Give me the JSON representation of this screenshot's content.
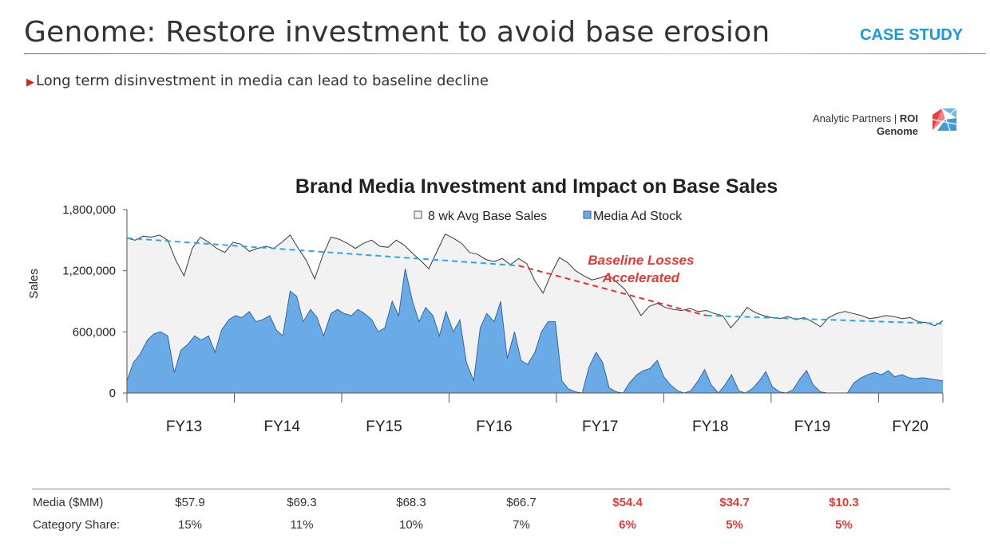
{
  "header": {
    "title": "Genome: Restore investment to avoid base erosion",
    "tag": "CASE STUDY",
    "subtitle": "Long term disinvestment in media can lead to baseline decline",
    "brand_line1": "Analytic Partners | ",
    "brand_bold1": "ROI",
    "brand_bold2": "Genome"
  },
  "chart_data": {
    "type": "area",
    "title": "Brand Media Investment and Impact on Base Sales",
    "ylabel": "Sales",
    "ylim": [
      0,
      1800000
    ],
    "yticks": [
      0,
      600000,
      1200000,
      1800000
    ],
    "ytick_labels": [
      "0",
      "600,000",
      "1,200,000",
      "1,800,000"
    ],
    "x_domain": [
      0,
      100
    ],
    "fiscal_years": [
      {
        "label": "FY13",
        "x": 7
      },
      {
        "label": "FY14",
        "x": 19
      },
      {
        "label": "FY15",
        "x": 31.5
      },
      {
        "label": "FY16",
        "x": 45
      },
      {
        "label": "FY17",
        "x": 58
      },
      {
        "label": "FY18",
        "x": 71.5
      },
      {
        "label": "FY19",
        "x": 84
      },
      {
        "label": "FY20",
        "x": 96
      }
    ],
    "legend": [
      "8 wk Avg Base Sales",
      "Media Ad Stock"
    ],
    "legend_colors": [
      "#f2f2f2",
      "#6aaae6"
    ],
    "series": [
      {
        "name": "8 wk Avg Base Sales",
        "color": "#f2f2f2",
        "x": [
          0,
          1,
          2,
          3,
          4,
          5,
          6,
          7,
          8,
          9,
          10,
          11,
          12,
          13,
          14,
          15,
          16,
          17,
          18,
          19,
          20,
          21,
          22,
          23,
          24,
          25,
          26,
          27,
          28,
          29,
          30,
          31,
          32,
          33,
          34,
          35,
          36,
          37,
          38,
          39,
          40,
          41,
          42,
          43,
          44,
          45,
          46,
          47,
          48,
          49,
          50,
          51,
          52,
          53,
          54,
          55,
          56,
          57,
          58,
          59,
          60,
          61,
          62,
          63,
          64,
          65,
          66,
          67,
          68,
          69,
          70,
          71,
          72,
          73,
          74,
          75,
          76,
          77,
          78,
          79,
          80,
          81,
          82,
          83,
          84,
          85,
          86,
          87,
          88,
          89,
          90,
          91,
          92,
          93,
          94,
          95,
          96,
          97,
          98,
          99,
          100
        ],
        "values": [
          1520000,
          1500000,
          1540000,
          1530000,
          1550000,
          1500000,
          1300000,
          1150000,
          1420000,
          1530000,
          1480000,
          1420000,
          1380000,
          1480000,
          1460000,
          1390000,
          1420000,
          1440000,
          1420000,
          1480000,
          1550000,
          1420000,
          1300000,
          1120000,
          1350000,
          1530000,
          1510000,
          1470000,
          1420000,
          1470000,
          1500000,
          1440000,
          1430000,
          1500000,
          1450000,
          1370000,
          1300000,
          1220000,
          1390000,
          1560000,
          1520000,
          1470000,
          1380000,
          1360000,
          1310000,
          1290000,
          1320000,
          1260000,
          1320000,
          1270000,
          1100000,
          980000,
          1170000,
          1330000,
          1280000,
          1200000,
          1150000,
          1110000,
          1130000,
          1160000,
          1090000,
          1020000,
          900000,
          760000,
          850000,
          880000,
          840000,
          820000,
          810000,
          830000,
          800000,
          810000,
          780000,
          760000,
          640000,
          730000,
          840000,
          790000,
          760000,
          740000,
          730000,
          750000,
          720000,
          740000,
          700000,
          650000,
          740000,
          780000,
          800000,
          780000,
          760000,
          730000,
          740000,
          760000,
          750000,
          730000,
          740000,
          700000,
          690000,
          660000,
          710000
        ]
      },
      {
        "name": "Media Ad Stock",
        "color": "#6aaae6",
        "x": [
          0,
          0.8,
          1.6,
          2.5,
          3.3,
          4.1,
          5,
          5.8,
          6.6,
          7.5,
          8.3,
          9.1,
          10,
          10.8,
          11.6,
          12.5,
          13.3,
          14.1,
          15,
          15.8,
          16.6,
          17.5,
          18.3,
          19.1,
          20,
          20.8,
          21.6,
          22.5,
          23.3,
          24.1,
          25,
          25.8,
          26.6,
          27.5,
          28.3,
          29.1,
          30,
          30.8,
          31.6,
          32.5,
          33.3,
          34.1,
          35,
          35.8,
          36.6,
          37.5,
          38.3,
          39.1,
          40,
          40.8,
          41.6,
          42.5,
          43.3,
          44.1,
          45,
          45.8,
          46.6,
          47.5,
          48.3,
          49.1,
          50,
          50.8,
          51.6,
          52.5,
          53.3,
          54.1,
          55,
          55.8,
          56.6,
          57.5,
          58.3,
          59.1,
          60,
          60.8,
          61.6,
          62.5,
          63.3,
          64.1,
          65,
          65.8,
          66.6,
          67.5,
          68.3,
          69.1,
          70,
          70.8,
          71.6,
          72.5,
          73.3,
          74.1,
          75,
          75.8,
          76.6,
          77.5,
          78.3,
          79.1,
          80,
          80.8,
          81.6,
          82.5,
          83.3,
          84.1,
          85,
          85.8,
          86.6,
          87.5,
          88.3,
          89.1,
          90,
          90.8,
          91.6,
          92.5,
          93.3,
          94.1,
          95,
          95.8,
          96.6,
          97.5,
          98.3,
          99.1,
          100
        ],
        "values": [
          120000,
          300000,
          380000,
          520000,
          580000,
          600000,
          560000,
          200000,
          420000,
          480000,
          560000,
          520000,
          560000,
          400000,
          620000,
          720000,
          760000,
          740000,
          800000,
          700000,
          720000,
          760000,
          620000,
          560000,
          1000000,
          950000,
          700000,
          820000,
          740000,
          560000,
          780000,
          820000,
          780000,
          760000,
          820000,
          780000,
          720000,
          600000,
          640000,
          900000,
          760000,
          1220000,
          900000,
          700000,
          840000,
          760000,
          560000,
          800000,
          600000,
          720000,
          300000,
          120000,
          640000,
          780000,
          700000,
          900000,
          340000,
          600000,
          320000,
          280000,
          400000,
          600000,
          700000,
          700000,
          120000,
          40000,
          10000,
          0,
          250000,
          400000,
          300000,
          50000,
          10000,
          0,
          100000,
          180000,
          220000,
          240000,
          320000,
          160000,
          80000,
          20000,
          0,
          20000,
          120000,
          230000,
          80000,
          0,
          80000,
          180000,
          20000,
          0,
          40000,
          120000,
          210000,
          60000,
          10000,
          0,
          30000,
          140000,
          220000,
          80000,
          10000,
          0,
          0,
          0,
          0,
          100000,
          150000,
          180000,
          200000,
          180000,
          220000,
          160000,
          180000,
          150000,
          140000,
          150000,
          140000,
          130000,
          120000
        ]
      }
    ],
    "trend_segments": [
      {
        "name": "blue-trend-1",
        "color": "#29a8f0",
        "points": [
          [
            0,
            1520000
          ],
          [
            48,
            1250000
          ]
        ]
      },
      {
        "name": "red-trend",
        "color": "#e83030",
        "points": [
          [
            48,
            1250000
          ],
          [
            71,
            760000
          ]
        ]
      },
      {
        "name": "blue-trend-2",
        "color": "#29a8f0",
        "points": [
          [
            71,
            760000
          ],
          [
            100,
            680000
          ]
        ]
      }
    ],
    "annotation": {
      "line1": "Baseline Losses",
      "line2": "Accelerated",
      "color": "#e53935",
      "x": 63,
      "y": 1260000
    }
  },
  "footer": {
    "media_label": "Media ($MM)",
    "share_label": "Category Share:",
    "media_values": [
      "$57.9",
      "$69.3",
      "$68.3",
      "$66.7",
      "$54.4",
      "$34.7",
      "$10.3"
    ],
    "share_values": [
      "15%",
      "11%",
      "10%",
      "7%",
      "6%",
      "5%",
      "5%"
    ]
  }
}
